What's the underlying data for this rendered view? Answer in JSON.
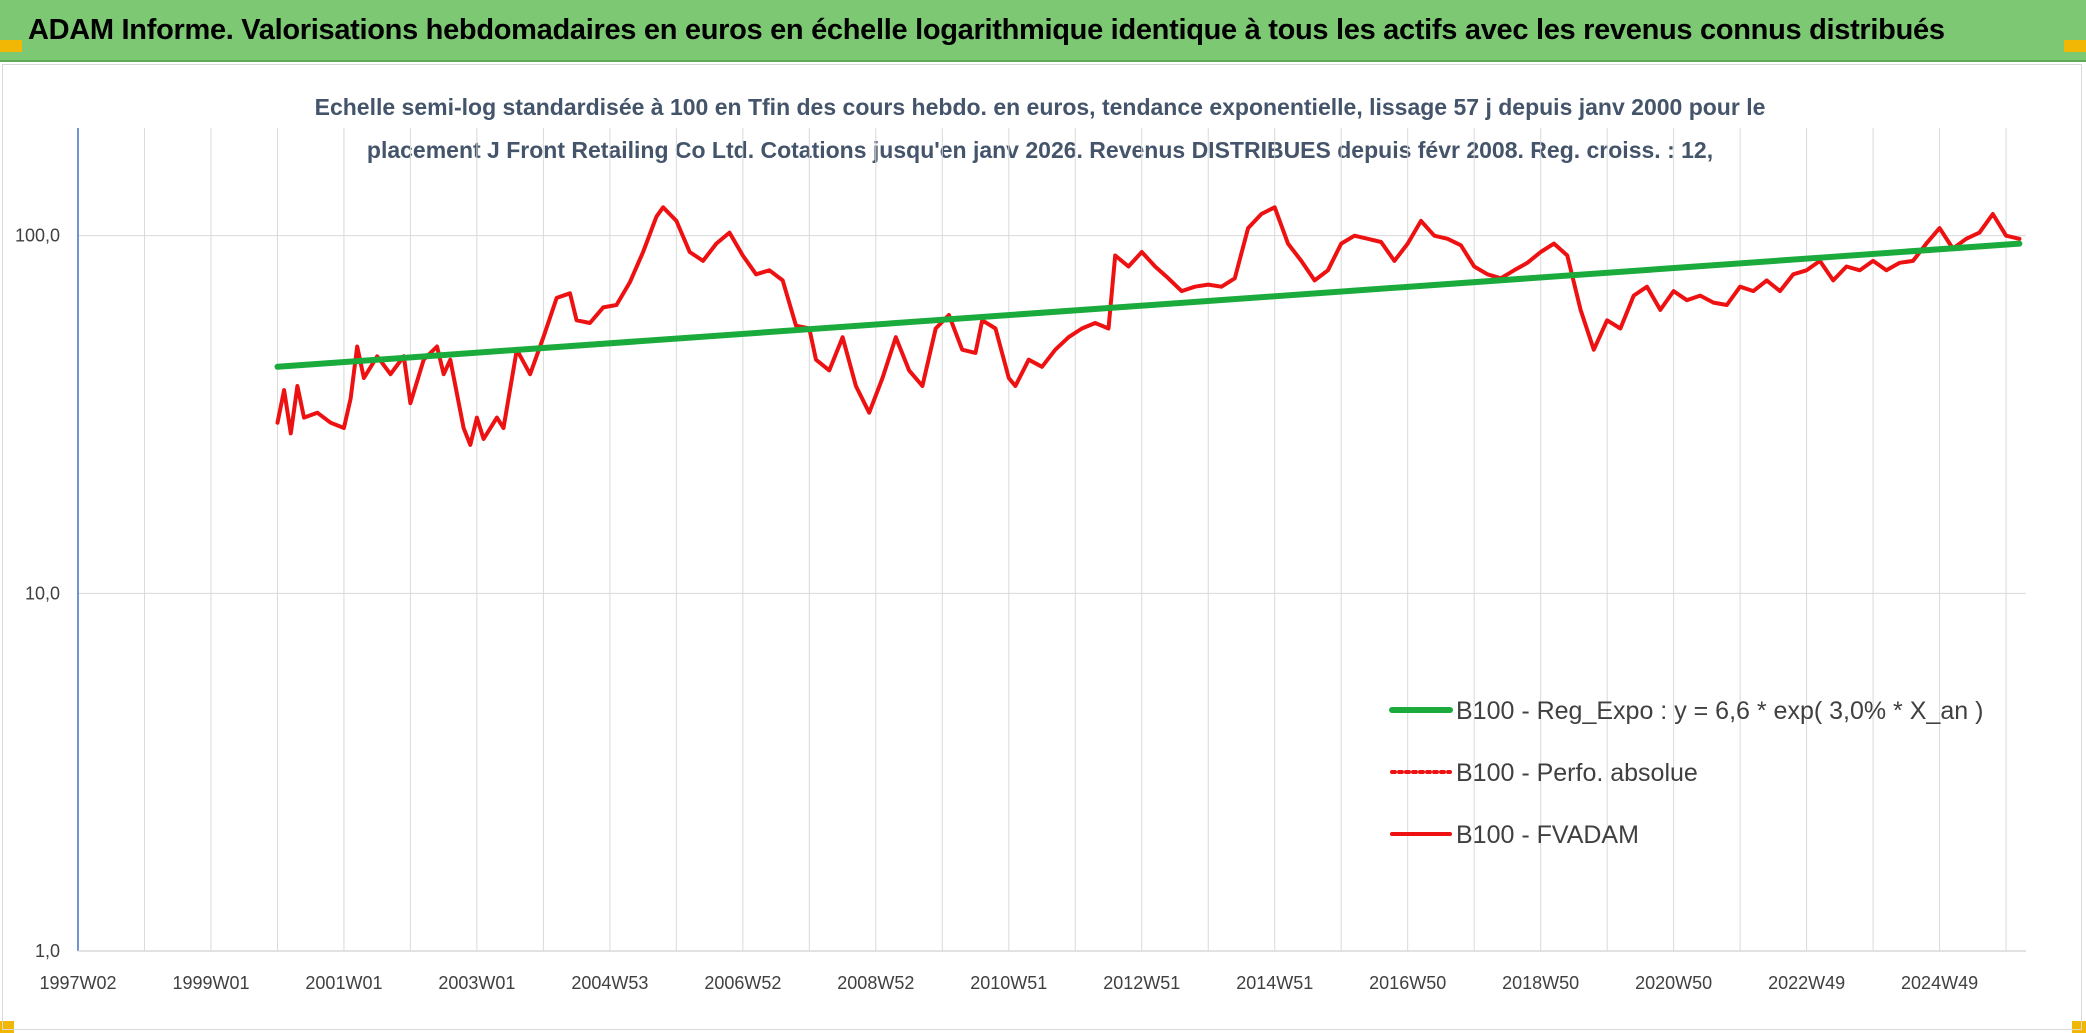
{
  "header": {
    "title": "ADAM Informe. Valorisations hebdomadaires en euros en échelle logarithmique identique à tous les actifs avec les revenus connus distribués"
  },
  "colors": {
    "banner": "#7dc873",
    "accent_corner": "#f2b705",
    "trend": "#1aab3c",
    "price": "#ee1111",
    "grid": "#d9d9d9",
    "axis": "#4472c4"
  },
  "chart_data": {
    "type": "line",
    "subtitle_lines": [
      "Echelle semi-log standardisée à 100 en Tfin des cours hebdo. en euros, tendance exponentielle, lissage 57 j depuis janv 2000 pour le",
      "placement J Front Retailing Co Ltd. Cotations jusqu'en janv 2026. Revenus DISTRIBUES depuis févr 2008. Reg. croiss. : 12,"
    ],
    "y_scale": "log",
    "ylim": [
      1,
      200
    ],
    "xlim": [
      1997.0,
      2026.3
    ],
    "grid": true,
    "legend_position": "right",
    "y_ticks": [
      {
        "value": 1,
        "label": "1,0"
      },
      {
        "value": 10,
        "label": "10,0"
      },
      {
        "value": 100,
        "label": "100,0"
      }
    ],
    "x_ticks": [
      {
        "value": 1997.0,
        "label": "1997W02"
      },
      {
        "value": 1999.0,
        "label": "1999W01"
      },
      {
        "value": 2001.0,
        "label": "2001W01"
      },
      {
        "value": 2003.0,
        "label": "2003W01"
      },
      {
        "value": 2005.0,
        "label": "2004W53"
      },
      {
        "value": 2007.0,
        "label": "2006W52"
      },
      {
        "value": 2009.0,
        "label": "2008W52"
      },
      {
        "value": 2011.0,
        "label": "2010W51"
      },
      {
        "value": 2013.0,
        "label": "2012W51"
      },
      {
        "value": 2015.0,
        "label": "2014W51"
      },
      {
        "value": 2017.0,
        "label": "2016W50"
      },
      {
        "value": 2019.0,
        "label": "2018W50"
      },
      {
        "value": 2021.0,
        "label": "2020W50"
      },
      {
        "value": 2023.0,
        "label": "2022W49"
      },
      {
        "value": 2025.0,
        "label": "2024W49"
      }
    ],
    "series": [
      {
        "name": "B100 - Reg_Expo : y = 6,6 * exp( 3,0% *  X_an )",
        "style": "solid-thick",
        "color": "#1aab3c",
        "x": [
          2000.0,
          2026.2
        ],
        "y": [
          43,
          95
        ]
      },
      {
        "name": "B100 - Perfo. absolue",
        "style": "dotted",
        "color": "#ee1111",
        "x": [],
        "y": []
      },
      {
        "name": "B100 - FVADAM",
        "style": "solid",
        "color": "#ee1111",
        "x": [
          2000.0,
          2000.1,
          2000.2,
          2000.3,
          2000.4,
          2000.6,
          2000.8,
          2001.0,
          2001.1,
          2001.2,
          2001.3,
          2001.5,
          2001.7,
          2001.9,
          2002.0,
          2002.2,
          2002.4,
          2002.5,
          2002.6,
          2002.8,
          2002.9,
          2003.0,
          2003.1,
          2003.3,
          2003.4,
          2003.6,
          2003.8,
          2004.0,
          2004.2,
          2004.4,
          2004.5,
          2004.7,
          2004.9,
          2005.1,
          2005.3,
          2005.5,
          2005.7,
          2005.8,
          2006.0,
          2006.2,
          2006.4,
          2006.6,
          2006.8,
          2007.0,
          2007.2,
          2007.4,
          2007.6,
          2007.8,
          2008.0,
          2008.1,
          2008.3,
          2008.5,
          2008.7,
          2008.9,
          2009.1,
          2009.3,
          2009.5,
          2009.7,
          2009.9,
          2010.1,
          2010.3,
          2010.5,
          2010.6,
          2010.8,
          2011.0,
          2011.1,
          2011.3,
          2011.5,
          2011.7,
          2011.9,
          2012.1,
          2012.3,
          2012.5,
          2012.6,
          2012.8,
          2013.0,
          2013.2,
          2013.4,
          2013.6,
          2013.8,
          2014.0,
          2014.2,
          2014.4,
          2014.6,
          2014.8,
          2015.0,
          2015.2,
          2015.4,
          2015.6,
          2015.8,
          2016.0,
          2016.2,
          2016.4,
          2016.6,
          2016.8,
          2017.0,
          2017.2,
          2017.4,
          2017.6,
          2017.8,
          2018.0,
          2018.2,
          2018.4,
          2018.6,
          2018.8,
          2019.0,
          2019.2,
          2019.4,
          2019.6,
          2019.8,
          2020.0,
          2020.2,
          2020.4,
          2020.6,
          2020.8,
          2021.0,
          2021.2,
          2021.4,
          2021.6,
          2021.8,
          2022.0,
          2022.2,
          2022.4,
          2022.6,
          2022.8,
          2023.0,
          2023.2,
          2023.4,
          2023.6,
          2023.8,
          2024.0,
          2024.2,
          2024.4,
          2024.6,
          2024.8,
          2025.0,
          2025.2,
          2025.4,
          2025.6,
          2025.8,
          2026.0,
          2026.2
        ],
        "y": [
          30,
          37,
          28,
          38,
          31,
          32,
          30,
          29,
          35,
          49,
          40,
          46,
          41,
          46,
          34,
          45,
          49,
          41,
          45,
          29,
          26,
          31,
          27,
          31,
          29,
          48,
          41,
          52,
          67,
          69,
          58,
          57,
          63,
          64,
          74,
          90,
          113,
          120,
          110,
          90,
          85,
          95,
          102,
          88,
          78,
          80,
          75,
          56,
          55,
          45,
          42,
          52,
          38,
          32,
          40,
          52,
          42,
          38,
          55,
          60,
          48,
          47,
          58,
          55,
          40,
          38,
          45,
          43,
          48,
          52,
          55,
          57,
          55,
          88,
          82,
          90,
          82,
          76,
          70,
          72,
          73,
          72,
          76,
          105,
          115,
          120,
          95,
          85,
          75,
          80,
          95,
          100,
          98,
          96,
          85,
          95,
          110,
          100,
          98,
          94,
          82,
          78,
          76,
          80,
          84,
          90,
          95,
          88,
          62,
          48,
          58,
          55,
          68,
          72,
          62,
          70,
          66,
          68,
          65,
          64,
          72,
          70,
          75,
          70,
          78,
          80,
          85,
          75,
          82,
          80,
          85,
          80,
          84,
          85,
          95,
          105,
          92,
          98,
          102,
          115,
          100,
          98
        ]
      }
    ]
  }
}
